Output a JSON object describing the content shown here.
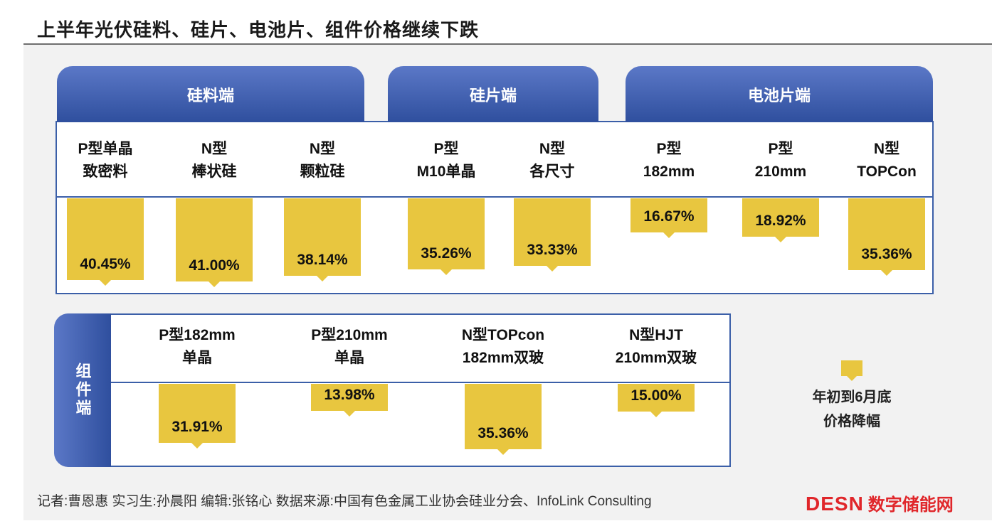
{
  "title": "上半年光伏硅料、硅片、电池片、组件价格继续下跌",
  "groups": {
    "polysilicon": "硅料端",
    "wafer": "硅片端",
    "cell": "电池片端",
    "module": "组件端"
  },
  "legend": {
    "line1": "年初到6月底",
    "line2": "价格降幅"
  },
  "footer": {
    "text": "记者:曹恩惠   实习生:孙晨阳   编辑:张铭心   数据来源:中国有色金属工业协会硅业分会、InfoLink Consulting"
  },
  "logo": {
    "brand": "DESN",
    "cn": "数字储能网"
  },
  "chart_data": [
    {
      "type": "bar",
      "title": "",
      "categories": [
        "P型单晶致密料",
        "N型棒状硅",
        "N型颗粒硅",
        "P型M10单晶",
        "N型各尺寸",
        "P型182mm",
        "P型210mm",
        "N型TOPCon"
      ],
      "values": [
        40.45,
        41.0,
        38.14,
        35.26,
        33.33,
        16.67,
        18.92,
        35.36
      ],
      "headers": [
        [
          "P型单晶",
          "致密料"
        ],
        [
          "N型",
          "棒状硅"
        ],
        [
          "N型",
          "颗粒硅"
        ],
        [
          "P型",
          "M10单晶"
        ],
        [
          "N型",
          "各尺寸"
        ],
        [
          "P型",
          "182mm"
        ],
        [
          "P型",
          "210mm"
        ],
        [
          "N型",
          "TOPCon"
        ]
      ],
      "labels": [
        "40.45%",
        "41.00%",
        "38.14%",
        "35.26%",
        "33.33%",
        "16.67%",
        "18.92%",
        "35.36%"
      ],
      "group_of": [
        "polysilicon",
        "polysilicon",
        "polysilicon",
        "wafer",
        "wafer",
        "cell",
        "cell",
        "cell"
      ],
      "unit": "%",
      "color": "#e8c63f"
    },
    {
      "type": "bar",
      "title": "",
      "categories": [
        "P型182mm单晶",
        "P型210mm单晶",
        "N型TOPcon182mm双玻",
        "N型HJT210mm双玻"
      ],
      "values": [
        31.91,
        13.98,
        35.36,
        15.0
      ],
      "headers": [
        [
          "P型182mm",
          "单晶"
        ],
        [
          "P型210mm",
          "单晶"
        ],
        [
          "N型TOPcon",
          "182mm双玻"
        ],
        [
          "N型HJT",
          "210mm双玻"
        ]
      ],
      "labels": [
        "31.91%",
        "13.98%",
        "35.36%",
        "15.00%"
      ],
      "unit": "%",
      "color": "#e8c63f"
    }
  ],
  "colors": {
    "accent": "#3b5fa8",
    "marker": "#e8c63f",
    "logo": "#e0262a"
  }
}
